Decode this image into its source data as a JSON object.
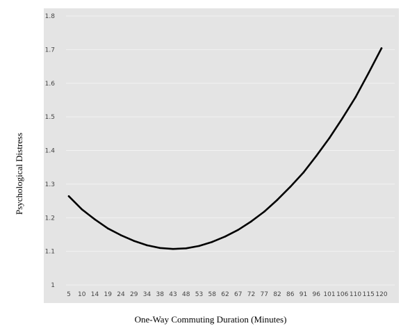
{
  "chart_data": {
    "type": "line",
    "title": "",
    "xlabel": "One-Way Commuting Duration (Minutes)",
    "ylabel": "Psychological Distress",
    "x": [
      5,
      10,
      14,
      19,
      24,
      29,
      34,
      38,
      43,
      48,
      53,
      58,
      62,
      67,
      72,
      77,
      82,
      86,
      91,
      96,
      101,
      106,
      110,
      115,
      120
    ],
    "x_tick_labels": [
      "5",
      "10",
      "14",
      "19",
      "24",
      "29",
      "34",
      "38",
      "43",
      "48",
      "53",
      "58",
      "62",
      "67",
      "72",
      "77",
      "82",
      "86",
      "91",
      "96",
      "101",
      "106",
      "110",
      "115",
      "120"
    ],
    "y_tick_labels": [
      "1",
      "1.1",
      "1.2",
      "1.3",
      "1.4",
      "1.5",
      "1.6",
      "1.7",
      "1.8"
    ],
    "ylim": [
      1,
      1.8
    ],
    "grid": true,
    "series": [
      {
        "values": [
          1.264,
          1.225,
          1.195,
          1.168,
          1.148,
          1.131,
          1.118,
          1.11,
          1.107,
          1.109,
          1.116,
          1.128,
          1.144,
          1.164,
          1.189,
          1.218,
          1.253,
          1.292,
          1.334,
          1.384,
          1.437,
          1.496,
          1.558,
          1.63,
          1.704
        ],
        "color": "#000000"
      }
    ],
    "colors": {
      "plot_background": "#e4e4e4",
      "gridline": "#f2f2f2",
      "line": "#000000"
    }
  }
}
